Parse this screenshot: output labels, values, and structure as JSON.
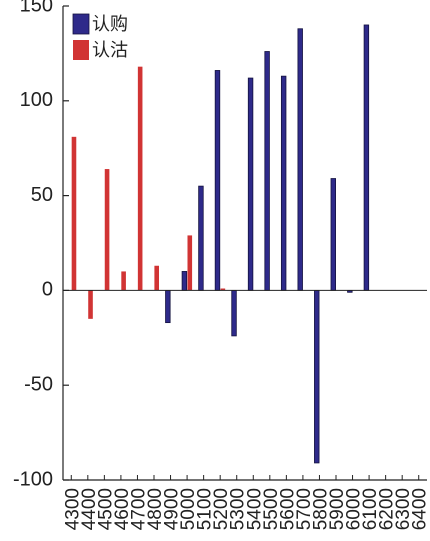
{
  "chart_data": {
    "type": "bar",
    "categories": [
      "4300",
      "4400",
      "4500",
      "4600",
      "4700",
      "4800",
      "4900",
      "5000",
      "5100",
      "5200",
      "5300",
      "5400",
      "5500",
      "5600",
      "5700",
      "5800",
      "5900",
      "6000",
      "6100",
      "6200",
      "6300",
      "6400"
    ],
    "series": [
      {
        "name": "认购",
        "color": "#2e2a8a",
        "values": [
          0,
          0,
          0,
          0,
          0,
          0,
          -17,
          10,
          55,
          116,
          -24,
          112,
          126,
          113,
          138,
          -91,
          59,
          -1,
          140,
          0,
          0,
          0
        ]
      },
      {
        "name": "认沽",
        "color": "#d13434",
        "values": [
          81,
          -15,
          64,
          10,
          118,
          13,
          0,
          29,
          0,
          1,
          0,
          0,
          0,
          0,
          0,
          0,
          0,
          0,
          0,
          0,
          0,
          0
        ]
      }
    ],
    "yticks": [
      150,
      100,
      50,
      0,
      -50,
      -100
    ],
    "ylim": [
      -100,
      150
    ],
    "legend": "top-left",
    "grid": false
  }
}
